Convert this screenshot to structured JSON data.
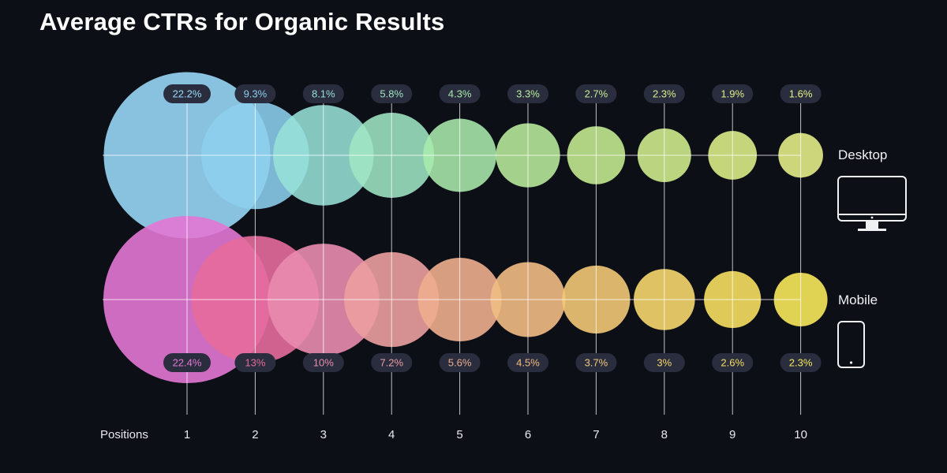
{
  "header": {
    "title": "Average CTRs for Organic Results"
  },
  "chart_data": {
    "type": "scatter",
    "title": "Average CTRs for Organic Results",
    "xlabel": "Positions",
    "categories": [
      "1",
      "2",
      "3",
      "4",
      "5",
      "6",
      "7",
      "8",
      "9",
      "10"
    ],
    "series": [
      {
        "name": "Desktop",
        "values": [
          22.2,
          9.3,
          8.1,
          5.8,
          4.3,
          3.3,
          2.7,
          2.3,
          1.9,
          1.6
        ],
        "labels": [
          "22.2%",
          "9.3%",
          "8.1%",
          "5.8%",
          "4.3%",
          "3.3%",
          "2.7%",
          "2.3%",
          "1.9%",
          "1.6%"
        ],
        "colors": [
          "#9bdcfb",
          "#8ccfee",
          "#96e1d7",
          "#9fe6c4",
          "#aaeaad",
          "#b9ed9c",
          "#c6ef92",
          "#d3f08e",
          "#dff18a",
          "#e9f28a"
        ]
      },
      {
        "name": "Mobile",
        "values": [
          22.4,
          13,
          10,
          7.2,
          5.6,
          4.5,
          3.7,
          3,
          2.6,
          2.3
        ],
        "labels": [
          "22.4%",
          "13%",
          "10%",
          "7.2%",
          "5.6%",
          "4.5%",
          "3.7%",
          "3%",
          "2.6%",
          "2.3%"
        ],
        "colors": [
          "#e377d4",
          "#e66c9c",
          "#e98caf",
          "#eb9f9f",
          "#eeae8e",
          "#f1bc83",
          "#f3c877",
          "#f5d66b",
          "#f6df60",
          "#f7e85a"
        ]
      }
    ],
    "legend": {
      "desktop_label": "Desktop",
      "mobile_label": "Mobile",
      "desktop_icon": "desktop-monitor-icon",
      "mobile_icon": "mobile-phone-icon"
    }
  }
}
